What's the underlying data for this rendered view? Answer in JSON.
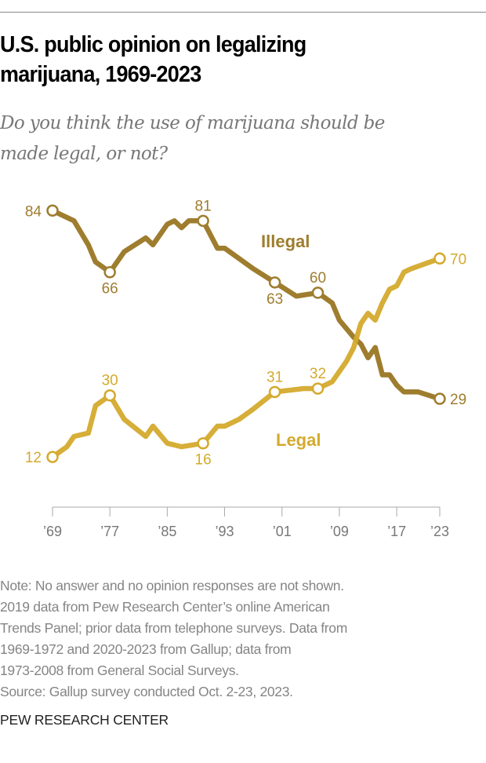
{
  "title_lines": [
    "U.S. public opinion on legalizing",
    "marijuana, 1969-2023"
  ],
  "subtitle_lines": [
    "Do you think the use of marijuana should be",
    "made legal, or not?"
  ],
  "note_lines": [
    "Note: No answer and no opinion responses are not shown.",
    "2019 data from Pew Research Center’s online American",
    "Trends Panel; prior data from telephone surveys. Data from",
    "1969-1972 and 2020-2023 from Gallup; data from",
    "1973-2008 from General Social Surveys."
  ],
  "source": "Source: Gallup survey conducted Oct. 2-23, 2023.",
  "brand": "PEW RESEARCH CENTER",
  "chart_data": {
    "type": "line",
    "title": "U.S. public opinion on legalizing marijuana, 1969-2023",
    "xlim": [
      1969,
      2023
    ],
    "x_ticks": [
      1969,
      1977,
      1985,
      1993,
      2001,
      2009,
      2017,
      2023
    ],
    "x_tick_labels": [
      "’69",
      "’77",
      "’85",
      "’93",
      "’01",
      "’09",
      "’17",
      "’23"
    ],
    "grid": false,
    "series": [
      {
        "name": "Illegal",
        "color": "#9e7d2e",
        "points": [
          [
            1969,
            84
          ],
          [
            1972,
            81
          ],
          [
            1974,
            74
          ],
          [
            1975,
            69
          ],
          [
            1977,
            66
          ],
          [
            1979,
            72
          ],
          [
            1982,
            76
          ],
          [
            1983,
            74
          ],
          [
            1985,
            80
          ],
          [
            1986,
            81
          ],
          [
            1987,
            79
          ],
          [
            1988,
            81
          ],
          [
            1990,
            81
          ],
          [
            1992,
            73
          ],
          [
            1993,
            73
          ],
          [
            1997,
            67
          ],
          [
            2000,
            63
          ],
          [
            2003,
            59
          ],
          [
            2006,
            60
          ],
          [
            2008,
            57
          ],
          [
            2009,
            52
          ],
          [
            2011,
            47
          ],
          [
            2012,
            45
          ],
          [
            2013,
            41
          ],
          [
            2014,
            44
          ],
          [
            2015,
            36
          ],
          [
            2016,
            36
          ],
          [
            2017,
            33
          ],
          [
            2018,
            31
          ],
          [
            2020,
            31
          ],
          [
            2023,
            29
          ]
        ],
        "labeled": [
          {
            "year": 1969,
            "value": 84,
            "text": "84",
            "pos": "left"
          },
          {
            "year": 1977,
            "value": 66,
            "text": "66",
            "pos": "below"
          },
          {
            "year": 1990,
            "value": 81,
            "text": "81",
            "pos": "above"
          },
          {
            "year": 2000,
            "value": 63,
            "text": "63",
            "pos": "below"
          },
          {
            "year": 2006,
            "value": 60,
            "text": "60",
            "pos": "above"
          },
          {
            "year": 2023,
            "value": 29,
            "text": "29",
            "pos": "right"
          }
        ]
      },
      {
        "name": "Legal",
        "color": "#d4aa2d",
        "points": [
          [
            1969,
            12
          ],
          [
            1971,
            15
          ],
          [
            1972,
            18
          ],
          [
            1974,
            19
          ],
          [
            1975,
            27
          ],
          [
            1977,
            30
          ],
          [
            1979,
            23
          ],
          [
            1982,
            18
          ],
          [
            1983,
            21
          ],
          [
            1985,
            16
          ],
          [
            1987,
            15
          ],
          [
            1990,
            16
          ],
          [
            1992,
            21
          ],
          [
            1993,
            21
          ],
          [
            1995,
            23
          ],
          [
            1997,
            26
          ],
          [
            2000,
            31
          ],
          [
            2004,
            32
          ],
          [
            2006,
            32
          ],
          [
            2008,
            34
          ],
          [
            2010,
            40
          ],
          [
            2011,
            44
          ],
          [
            2012,
            51
          ],
          [
            2013,
            54
          ],
          [
            2014,
            52
          ],
          [
            2015,
            57
          ],
          [
            2016,
            61
          ],
          [
            2017,
            62
          ],
          [
            2018,
            66
          ],
          [
            2019,
            67
          ],
          [
            2023,
            70
          ]
        ],
        "labeled": [
          {
            "year": 1969,
            "value": 12,
            "text": "12",
            "pos": "left"
          },
          {
            "year": 1977,
            "value": 30,
            "text": "30",
            "pos": "above"
          },
          {
            "year": 1990,
            "value": 16,
            "text": "16",
            "pos": "below"
          },
          {
            "year": 2000,
            "value": 31,
            "text": "31",
            "pos": "above"
          },
          {
            "year": 2006,
            "value": 32,
            "text": "32",
            "pos": "above"
          },
          {
            "year": 2023,
            "value": 70,
            "text": "70",
            "pos": "right"
          }
        ]
      }
    ]
  }
}
